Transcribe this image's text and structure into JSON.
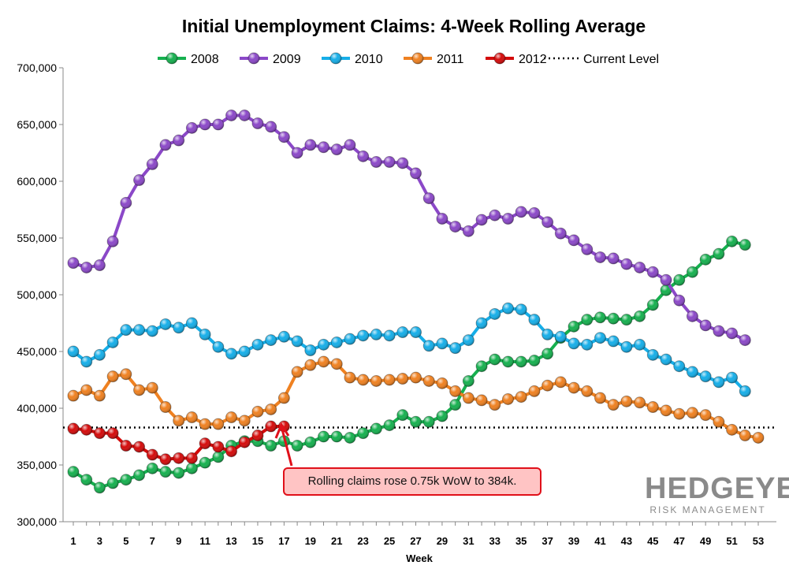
{
  "chart_data": {
    "type": "line",
    "title": "Initial Unemployment Claims: 4-Week Rolling Average",
    "xlabel": "Week",
    "ylabel": "",
    "xlim": [
      1,
      53
    ],
    "ylim": [
      300000,
      700000
    ],
    "y_ticks": [
      "300,000",
      "350,000",
      "400,000",
      "450,000",
      "500,000",
      "550,000",
      "600,000",
      "650,000",
      "700,000"
    ],
    "x_ticks": [
      "1",
      "3",
      "5",
      "7",
      "9",
      "11",
      "13",
      "15",
      "17",
      "19",
      "21",
      "23",
      "25",
      "27",
      "29",
      "31",
      "33",
      "35",
      "37",
      "39",
      "41",
      "43",
      "45",
      "47",
      "49",
      "51",
      "53"
    ],
    "grid": false,
    "legend_position": "top",
    "series": [
      {
        "name": "2008",
        "color": "#16b04f",
        "values": [
          344,
          337,
          330,
          334,
          337,
          341,
          347,
          344,
          343,
          347,
          352,
          357,
          367,
          371,
          371,
          367,
          371,
          367,
          370,
          375,
          375,
          374,
          378,
          382,
          385,
          394,
          388,
          388,
          393,
          403,
          424,
          437,
          443,
          441,
          441,
          442,
          448,
          462,
          472,
          478,
          480,
          479,
          478,
          481,
          491,
          504,
          513,
          520,
          531,
          536,
          547,
          544
        ]
      },
      {
        "name": "2009",
        "color": "#8b48c8",
        "values": [
          528,
          524,
          526,
          547,
          581,
          601,
          615,
          632,
          636,
          647,
          650,
          650,
          658,
          658,
          651,
          648,
          639,
          625,
          632,
          630,
          628,
          632,
          622,
          617,
          617,
          616,
          607,
          585,
          567,
          560,
          556,
          566,
          570,
          567,
          573,
          572,
          564,
          554,
          548,
          540,
          533,
          532,
          527,
          524,
          520,
          513,
          495,
          481,
          473,
          468,
          466,
          460
        ]
      },
      {
        "name": "2010",
        "color": "#16aee8",
        "values": [
          450,
          441,
          447,
          458,
          469,
          469,
          468,
          474,
          471,
          475,
          465,
          454,
          448,
          450,
          456,
          460,
          463,
          459,
          451,
          456,
          458,
          461,
          464,
          465,
          464,
          467,
          467,
          455,
          457,
          453,
          460,
          475,
          483,
          488,
          487,
          478,
          465,
          463,
          457,
          456,
          462,
          459,
          454,
          456,
          447,
          443,
          437,
          432,
          428,
          423,
          427,
          415
        ]
      },
      {
        "name": "2011",
        "color": "#ef8121",
        "values": [
          411,
          416,
          411,
          428,
          430,
          416,
          418,
          401,
          389,
          392,
          386,
          386,
          392,
          389,
          397,
          399,
          409,
          432,
          438,
          441,
          439,
          427,
          425,
          424,
          425,
          426,
          427,
          424,
          422,
          415,
          409,
          407,
          403,
          408,
          410,
          415,
          420,
          423,
          418,
          415,
          409,
          403,
          406,
          405,
          401,
          398,
          395,
          396,
          394,
          388,
          381,
          376,
          374
        ]
      },
      {
        "name": "2012",
        "color": "#d40b0b",
        "values": [
          382,
          381,
          378,
          378,
          367,
          366,
          359,
          355,
          356,
          356,
          369,
          366,
          362,
          370,
          376,
          384,
          384
        ]
      }
    ],
    "value_unit_note_multiplier": 1000,
    "reference_line": {
      "name": "Current Level",
      "value": 383000,
      "style": "dotted",
      "color": "#000000"
    },
    "annotation": "Rolling claims rose 0.75k  WoW to 384k."
  },
  "logo": {
    "name": "HEDGEYE",
    "tagline": "RISK MANAGEMENT"
  }
}
